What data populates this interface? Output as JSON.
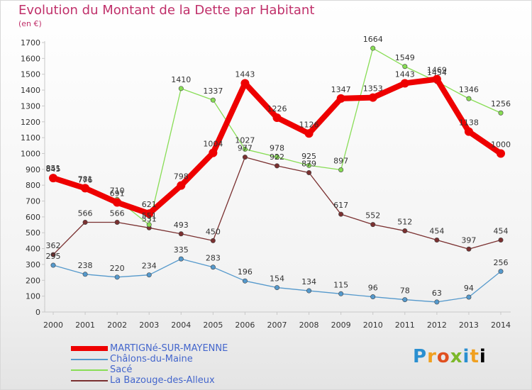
{
  "title": "Evolution du Montant de la Dette par Habitant",
  "subtitle": "(en €)",
  "logo_text": "Proxiti",
  "chart_data": {
    "type": "line",
    "title": "Evolution du Montant de la Dette par Habitant",
    "subtitle": "(en €)",
    "ylim": [
      0,
      1700
    ],
    "ytick_step": 100,
    "grid": false,
    "legend_position": "bottom-left",
    "categories": [
      "2000",
      "2001",
      "2002",
      "2003",
      "2004",
      "2005",
      "2006",
      "2007",
      "2008",
      "2009",
      "2010",
      "2011",
      "2012",
      "2013",
      "2014"
    ],
    "series": [
      {
        "name": "MARTIGNé-SUR-MAYENNE",
        "color": "#ee0000",
        "values": [
          845,
          781,
          691,
          621,
          798,
          1004,
          1443,
          1226,
          1126,
          1347,
          1353,
          1443,
          1469,
          1138,
          1000
        ]
      },
      {
        "name": "Châlons-du-Maine",
        "color": "#5599cc",
        "values": [
          295,
          238,
          220,
          234,
          335,
          283,
          196,
          154,
          134,
          115,
          96,
          78,
          63,
          94,
          256
        ]
      },
      {
        "name": "Sacé",
        "color": "#88dd55",
        "values": [
          851,
          776,
          710,
          551,
          1410,
          1337,
          1027,
          978,
          925,
          897,
          1664,
          1549,
          1454,
          1346,
          1256
        ]
      },
      {
        "name": "La Bazouge-des-Alleux",
        "color": "#7a3030",
        "values": [
          362,
          566,
          566,
          531,
          493,
          450,
          977,
          922,
          879,
          617,
          552,
          512,
          454,
          397,
          454
        ]
      }
    ]
  }
}
